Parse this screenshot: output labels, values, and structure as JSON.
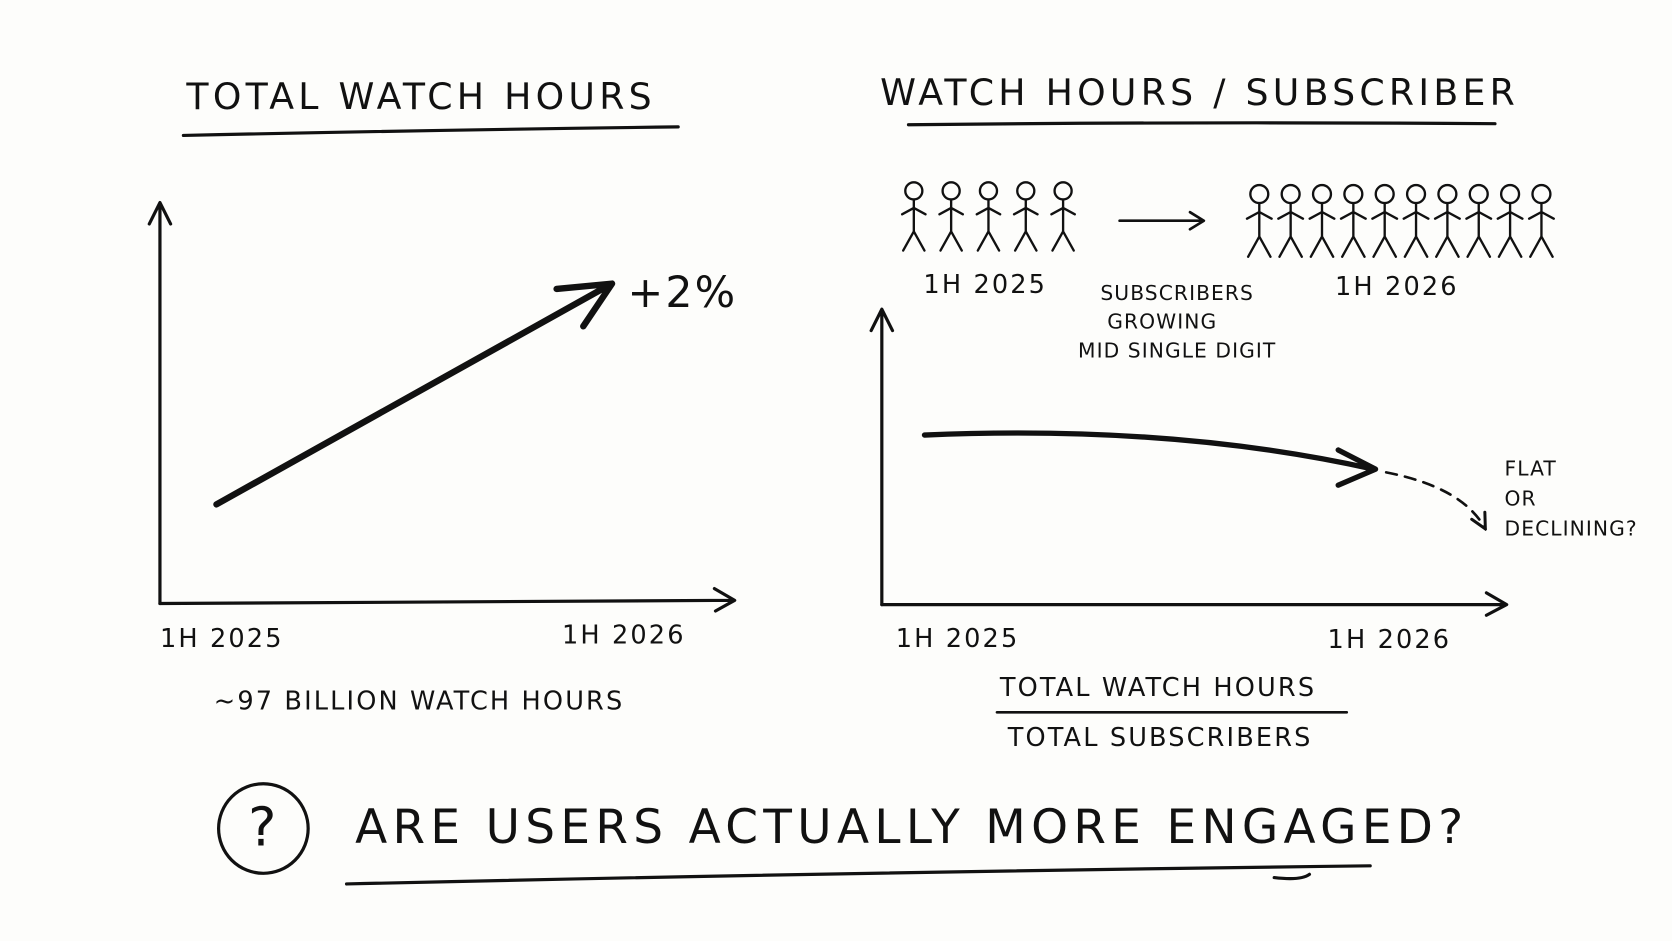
{
  "left_panel": {
    "title": "TOTAL WATCH HOURS",
    "x_labels": [
      "1H 2025",
      "1H 2026"
    ],
    "change_label": "+2%",
    "note": "~97 BILLION WATCH HOURS"
  },
  "right_panel": {
    "title": "WATCH HOURS / SUBSCRIBER",
    "subscribers": {
      "start_label": "1H 2025",
      "end_label": "1H 2026",
      "note_lines": [
        "SUBSCRIBERS",
        "GROWING",
        "MID SINGLE DIGIT"
      ]
    },
    "x_labels": [
      "1H 2025",
      "1H 2026"
    ],
    "trend_note_lines": [
      "FLAT",
      "OR",
      "DECLINING?"
    ],
    "formula": {
      "numerator": "TOTAL WATCH HOURS",
      "denominator": "TOTAL SUBSCRIBERS"
    }
  },
  "question": {
    "icon": "?",
    "text": "ARE USERS ACTUALLY MORE ENGAGED?"
  }
}
